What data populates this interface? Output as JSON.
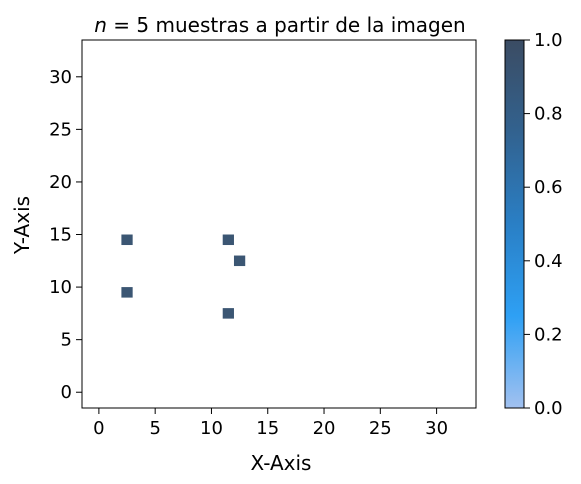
{
  "chart_data": {
    "type": "heatmap",
    "title_prefix": "n",
    "title_eq": " = 5 muestras a partir de la imagen",
    "xlabel": "X-Axis",
    "ylabel": "Y-Axis",
    "xlim": [
      -1.5,
      33.5
    ],
    "ylim": [
      -1.5,
      33.5
    ],
    "xticks": [
      0,
      5,
      10,
      15,
      20,
      25,
      30
    ],
    "yticks": [
      0,
      5,
      10,
      15,
      20,
      25,
      30
    ],
    "cells": [
      {
        "x": 2.5,
        "y": 14.5,
        "value": 1.0
      },
      {
        "x": 11.5,
        "y": 14.5,
        "value": 1.0
      },
      {
        "x": 12.5,
        "y": 12.5,
        "value": 1.0
      },
      {
        "x": 2.5,
        "y": 9.5,
        "value": 1.0
      },
      {
        "x": 11.5,
        "y": 7.5,
        "value": 1.0
      }
    ],
    "cell_color": "#3b5673",
    "colorbar": {
      "range": [
        0.0,
        1.0
      ],
      "ticks": [
        "0.0",
        "0.2",
        "0.4",
        "0.6",
        "0.8",
        "1.0"
      ],
      "colors": [
        "#a2c1f0",
        "#2ea0f4",
        "#2a7fc5",
        "#32628f",
        "#3b4c63"
      ]
    },
    "grid": false,
    "legend": "none"
  }
}
